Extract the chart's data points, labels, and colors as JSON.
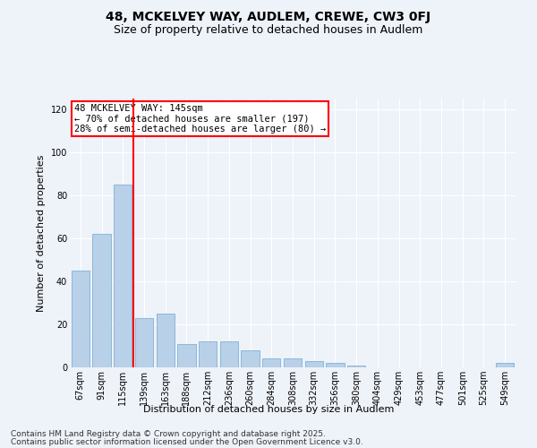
{
  "title": "48, MCKELVEY WAY, AUDLEM, CREWE, CW3 0FJ",
  "subtitle": "Size of property relative to detached houses in Audlem",
  "xlabel": "Distribution of detached houses by size in Audlem",
  "ylabel": "Number of detached properties",
  "categories": [
    "67sqm",
    "91sqm",
    "115sqm",
    "139sqm",
    "163sqm",
    "188sqm",
    "212sqm",
    "236sqm",
    "260sqm",
    "284sqm",
    "308sqm",
    "332sqm",
    "356sqm",
    "380sqm",
    "404sqm",
    "429sqm",
    "453sqm",
    "477sqm",
    "501sqm",
    "525sqm",
    "549sqm"
  ],
  "values": [
    45,
    62,
    85,
    23,
    25,
    11,
    12,
    12,
    8,
    4,
    4,
    3,
    2,
    1,
    0,
    0,
    0,
    0,
    0,
    0,
    2
  ],
  "bar_color": "#b8d0e8",
  "bar_edge_color": "#6fa8d0",
  "vline_x_index": 2.5,
  "vline_color": "red",
  "annotation_text": "48 MCKELVEY WAY: 145sqm\n← 70% of detached houses are smaller (197)\n28% of semi-detached houses are larger (80) →",
  "annotation_box_color": "white",
  "annotation_box_edge_color": "red",
  "ylim": [
    0,
    125
  ],
  "yticks": [
    0,
    20,
    40,
    60,
    80,
    100,
    120
  ],
  "footer1": "Contains HM Land Registry data © Crown copyright and database right 2025.",
  "footer2": "Contains public sector information licensed under the Open Government Licence v3.0.",
  "bg_color": "#eef2f9",
  "plot_bg_color": "#eef2f9",
  "title_fontsize": 10,
  "subtitle_fontsize": 9,
  "axis_label_fontsize": 8,
  "tick_fontsize": 7,
  "footer_fontsize": 6.5,
  "annotation_fontsize": 7.5
}
